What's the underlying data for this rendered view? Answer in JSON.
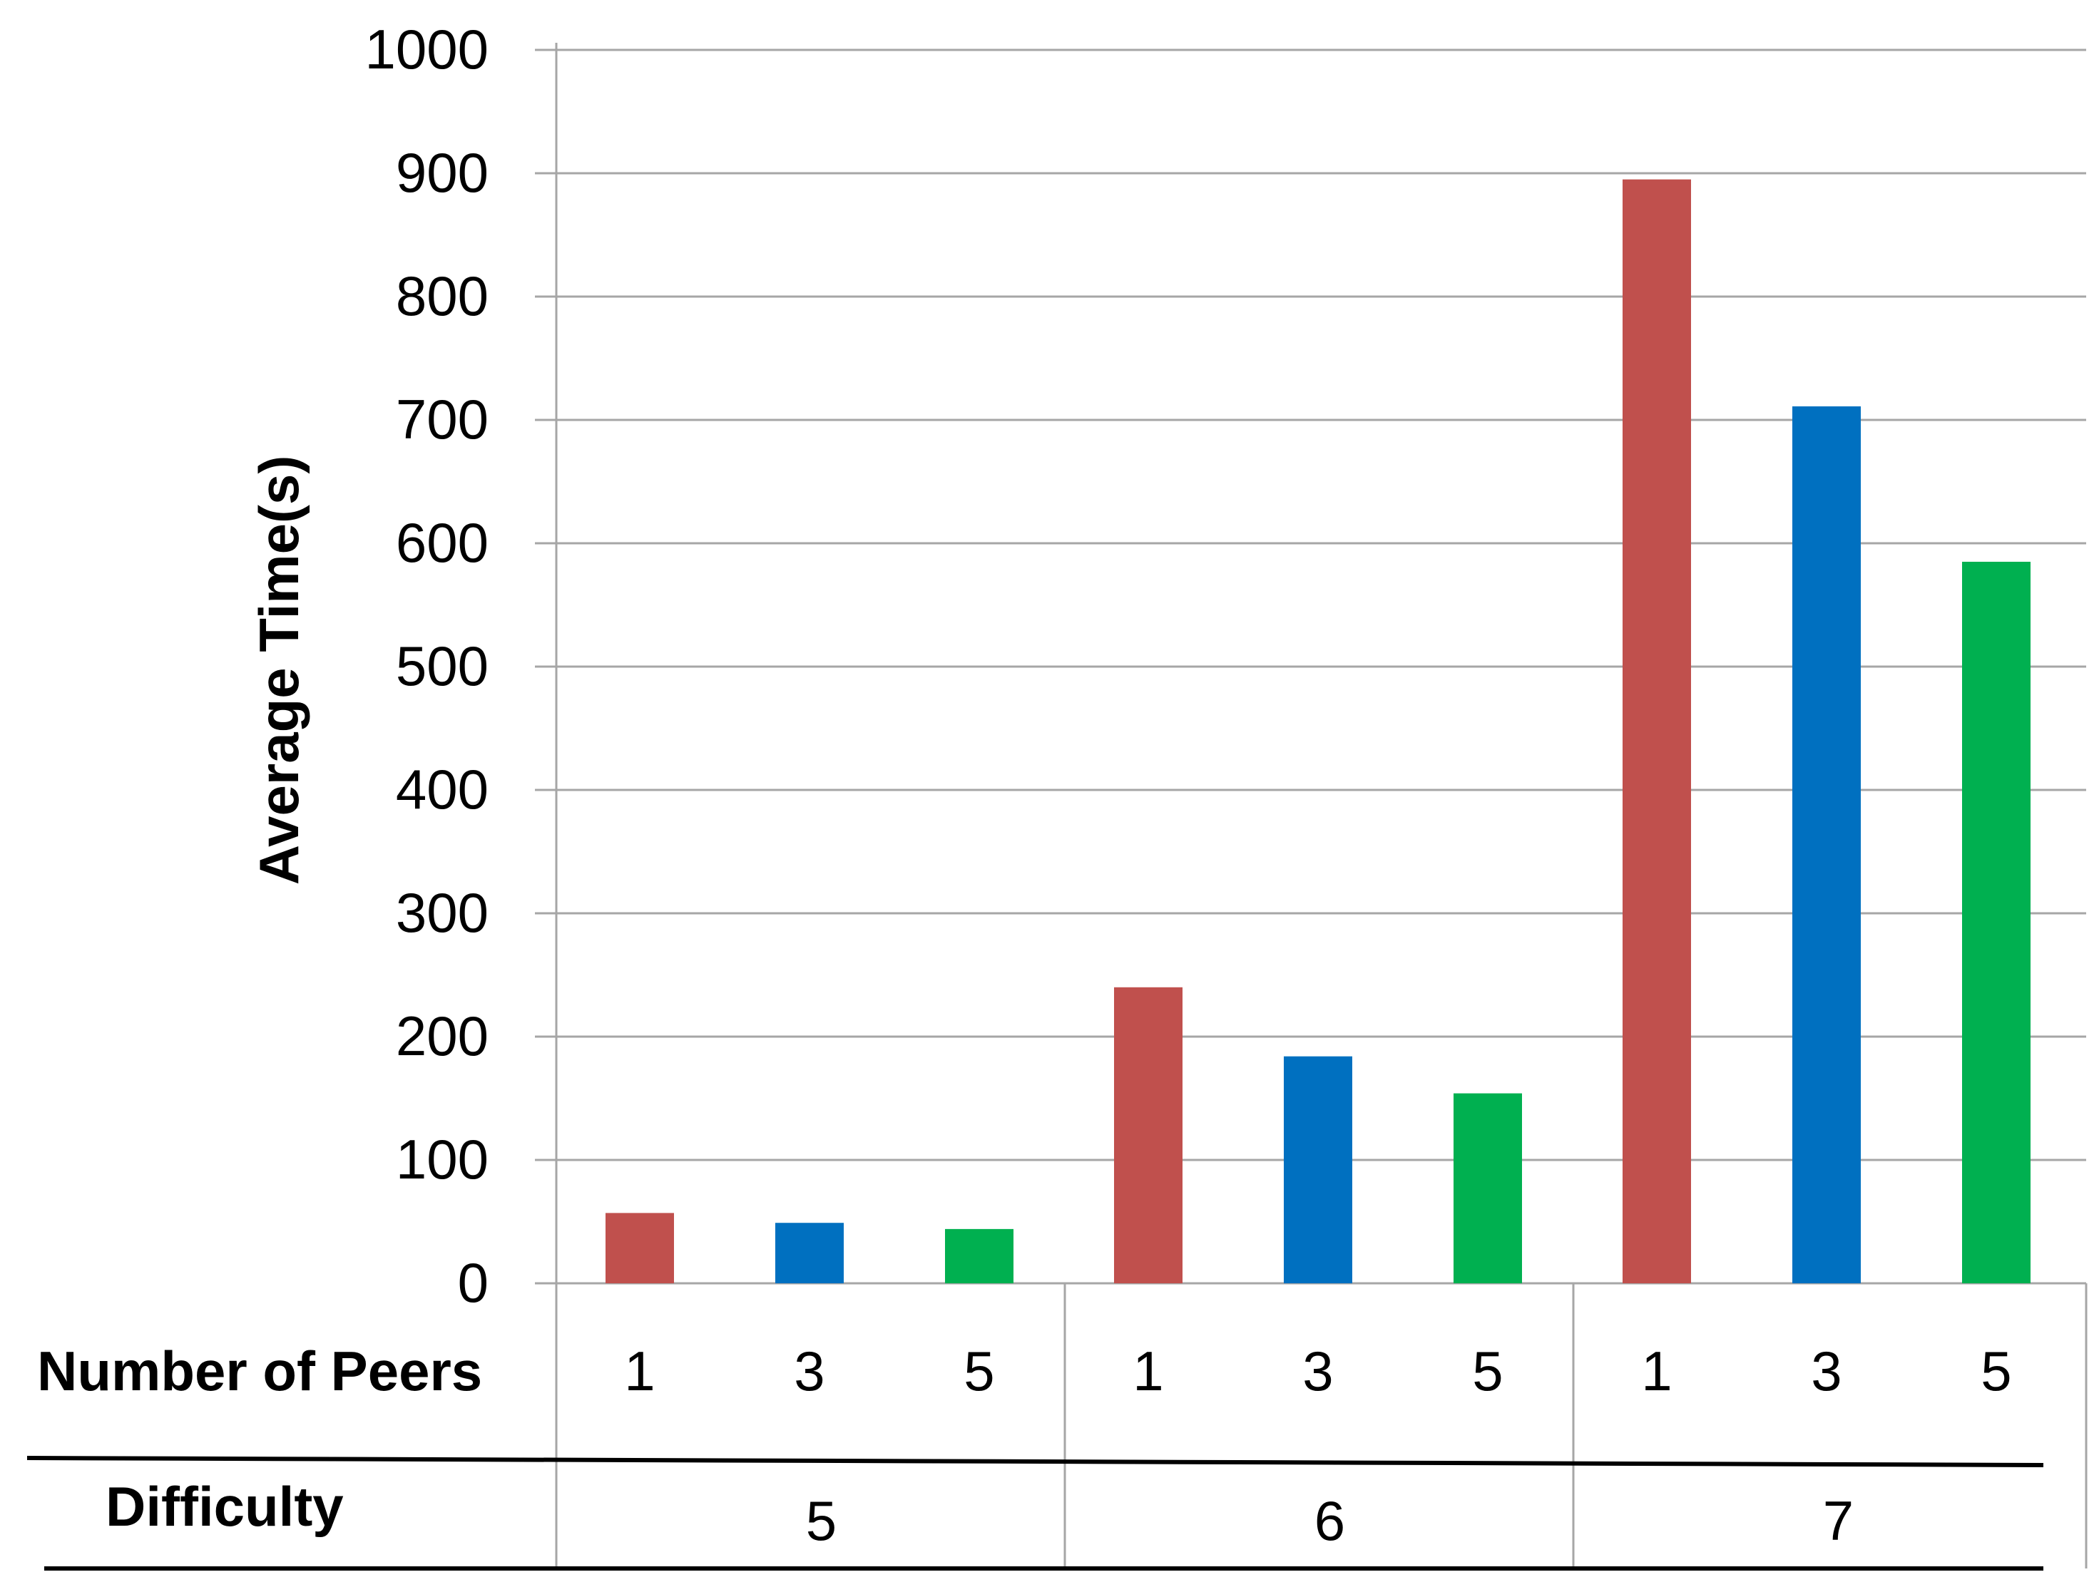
{
  "chart_data": {
    "type": "bar",
    "title": "",
    "ylabel": "Average Time(s)",
    "ylim": [
      0,
      1000
    ],
    "yticks": [
      0,
      100,
      200,
      300,
      400,
      500,
      600,
      700,
      800,
      900,
      1000
    ],
    "grid": true,
    "legend": "none",
    "row_headers": {
      "peers": "Number of Peers",
      "difficulty": "Difficulty"
    },
    "groups": [
      {
        "difficulty": "5",
        "bars": [
          {
            "peers": "1",
            "value": 57,
            "color": "#c0504d"
          },
          {
            "peers": "3",
            "value": 49,
            "color": "#0070c0"
          },
          {
            "peers": "5",
            "value": 44,
            "color": "#00b050"
          }
        ]
      },
      {
        "difficulty": "6",
        "bars": [
          {
            "peers": "1",
            "value": 240,
            "color": "#c0504d"
          },
          {
            "peers": "3",
            "value": 184,
            "color": "#0070c0"
          },
          {
            "peers": "5",
            "value": 154,
            "color": "#00b050"
          }
        ]
      },
      {
        "difficulty": "7",
        "bars": [
          {
            "peers": "1",
            "value": 895,
            "color": "#c0504d"
          },
          {
            "peers": "3",
            "value": 711,
            "color": "#0070c0"
          },
          {
            "peers": "5",
            "value": 585,
            "color": "#00b050"
          }
        ]
      }
    ]
  }
}
